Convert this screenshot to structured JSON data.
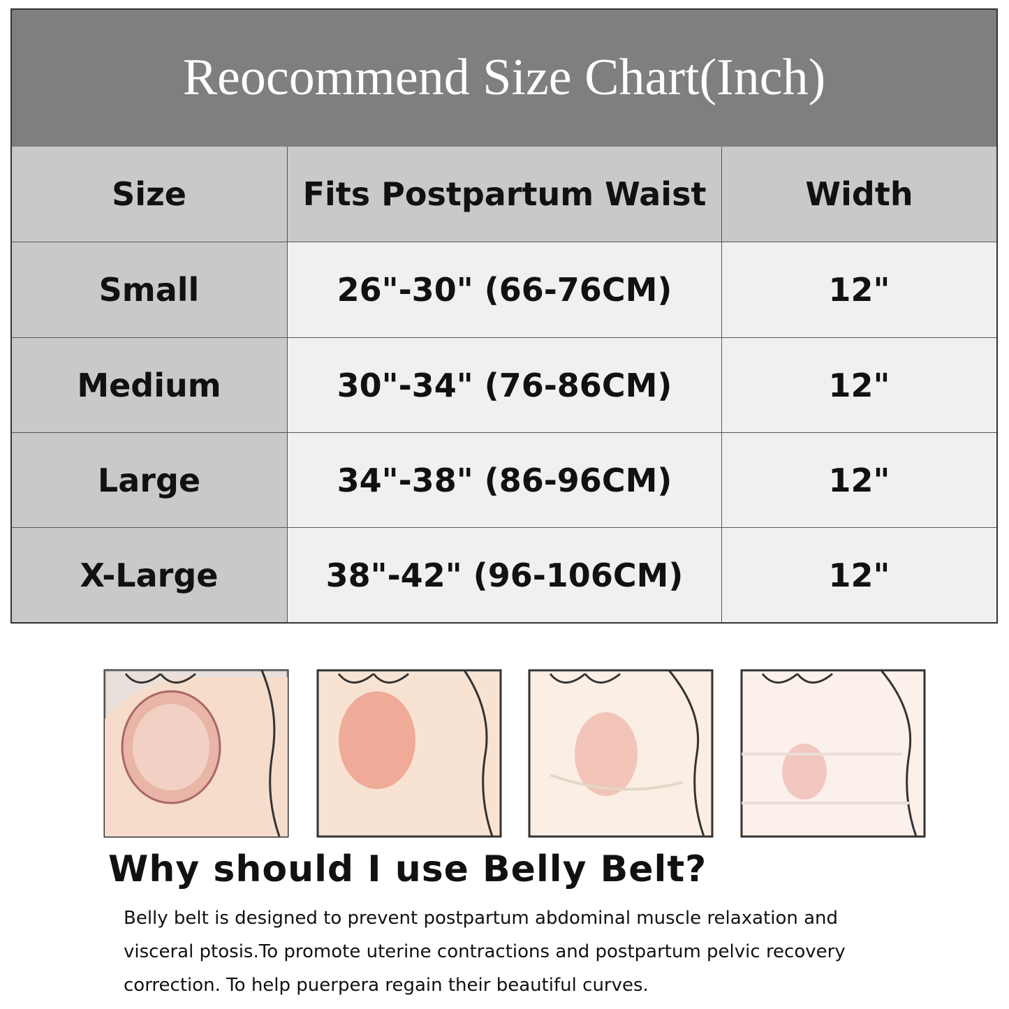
{
  "table": {
    "title": "Reocommend Size Chart(Inch)",
    "header": [
      "Size",
      "Fits Postpartum Waist",
      "Width"
    ],
    "rows": [
      [
        "Small",
        "26\"-30\" (66-76CM)",
        "12\""
      ],
      [
        "Medium",
        "30\"-34\" (76-86CM)",
        "12\""
      ],
      [
        "Large",
        "34\"-38\" (86-96CM)",
        "12\""
      ],
      [
        "X-Large",
        "38\"-42\" (96-106CM)",
        "12\""
      ]
    ]
  },
  "info": {
    "heading": "Why should I use Belly Belt?",
    "lines": [
      "Belly belt is designed to prevent postpartum abdominal muscle relaxation and",
      "visceral ptosis.To promote uterine contractions and postpartum pelvic recovery",
      "correction. To help puerpera regain their beautiful curves."
    ]
  }
}
